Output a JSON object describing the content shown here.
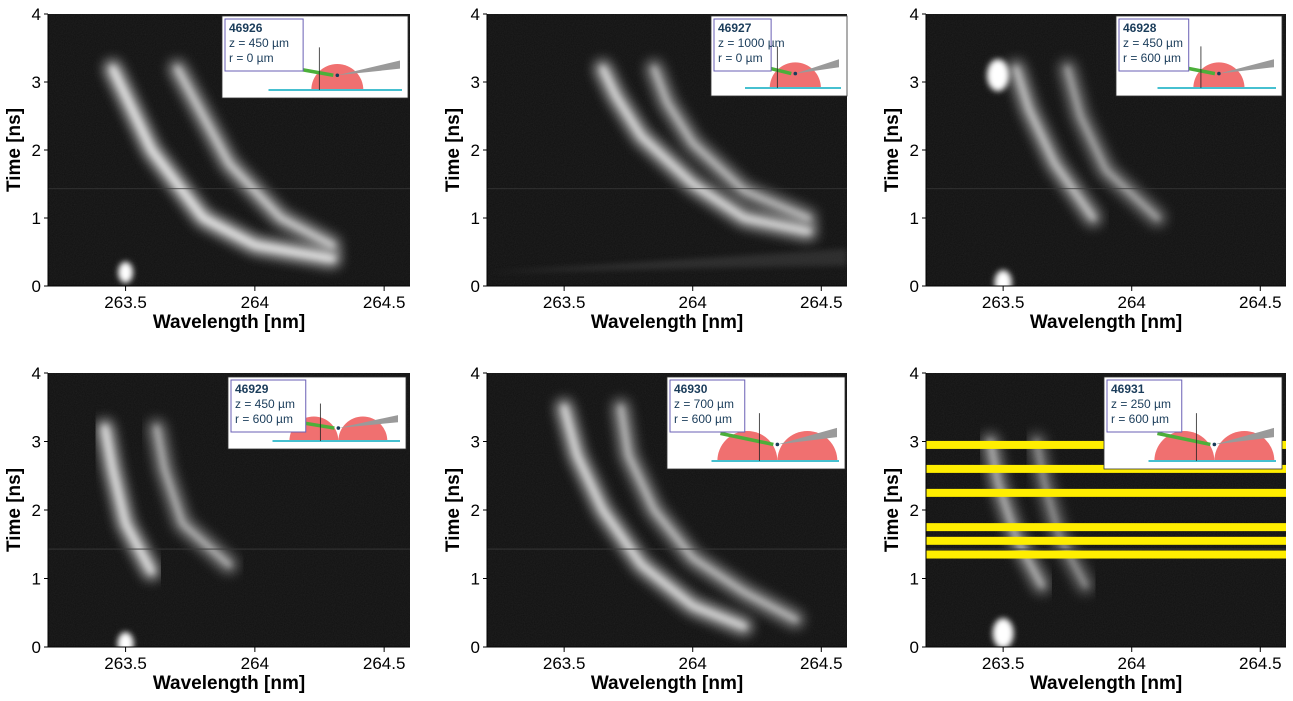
{
  "chart_data": [
    {
      "type": "heatmap",
      "shot": "46926",
      "inset": {
        "shot": "46926",
        "z": "z = 450 µm",
        "r": "r = 0 µm",
        "droplets": 1
      },
      "xlabel": "Wavelength [nm]",
      "ylabel": "Time [ns]",
      "xlim": [
        263.2,
        264.6
      ],
      "ylim": [
        0,
        4
      ],
      "xticks": [
        263.5,
        264,
        264.5
      ],
      "xtick_labels": [
        "263.5",
        "264",
        "264.5"
      ],
      "yticks": [
        0,
        1,
        2,
        3,
        4
      ],
      "ytick_labels": [
        "0",
        "1",
        "2",
        "3",
        "4"
      ],
      "bands": [
        {
          "x": [
            263.45,
            263.5,
            263.6,
            263.8,
            264.0,
            264.3
          ],
          "y": [
            3.2,
            2.8,
            2.0,
            1.0,
            0.6,
            0.4
          ],
          "intensity": 0.95
        },
        {
          "x": [
            263.7,
            263.8,
            263.9,
            264.1,
            264.3
          ],
          "y": [
            3.2,
            2.5,
            1.8,
            1.0,
            0.6
          ],
          "intensity": 0.75
        }
      ],
      "spots": [
        {
          "x": 263.5,
          "y": 0.2,
          "size": 0.4
        }
      ],
      "highlight_lines": []
    },
    {
      "type": "heatmap",
      "shot": "46927",
      "inset": {
        "shot": "46927",
        "z": "z = 1000 µm",
        "r": "r = 0 µm",
        "droplets": 1
      },
      "xlabel": "Wavelength [nm]",
      "ylabel": "Time [ns]",
      "xlim": [
        263.2,
        264.6
      ],
      "ylim": [
        0,
        4
      ],
      "xticks": [
        263.5,
        264,
        264.5
      ],
      "xtick_labels": [
        "263.5",
        "264",
        "264.5"
      ],
      "yticks": [
        0,
        1,
        2,
        3,
        4
      ],
      "ytick_labels": [
        "0",
        "1",
        "2",
        "3",
        "4"
      ],
      "bands": [
        {
          "x": [
            263.65,
            263.7,
            263.8,
            264.0,
            264.2,
            264.45
          ],
          "y": [
            3.2,
            2.8,
            2.2,
            1.5,
            1.0,
            0.8
          ],
          "intensity": 0.85
        },
        {
          "x": [
            263.85,
            263.9,
            264.0,
            264.2,
            264.45
          ],
          "y": [
            3.2,
            2.7,
            2.1,
            1.4,
            1.0
          ],
          "intensity": 0.65
        }
      ],
      "spots": [],
      "stripe": {
        "y_start": 0.2,
        "y_end": 0.45,
        "intensity": 0.35
      },
      "highlight_lines": []
    },
    {
      "type": "heatmap",
      "shot": "46928",
      "inset": {
        "shot": "46928",
        "z": "z = 450 µm",
        "r": "r = 600 µm",
        "droplets": 1
      },
      "xlabel": "Wavelength [nm]",
      "ylabel": "Time [ns]",
      "xlim": [
        263.2,
        264.6
      ],
      "ylim": [
        0,
        4
      ],
      "xticks": [
        263.5,
        264,
        264.5
      ],
      "xtick_labels": [
        "263.5",
        "264",
        "264.5"
      ],
      "yticks": [
        0,
        1,
        2,
        3,
        4
      ],
      "ytick_labels": [
        "0",
        "1",
        "2",
        "3",
        "4"
      ],
      "bands": [
        {
          "x": [
            263.55,
            263.6,
            263.7,
            263.85
          ],
          "y": [
            3.2,
            2.6,
            1.8,
            1.0
          ],
          "intensity": 0.7
        },
        {
          "x": [
            263.75,
            263.8,
            263.9,
            264.1
          ],
          "y": [
            3.2,
            2.5,
            1.7,
            1.0
          ],
          "intensity": 0.55
        }
      ],
      "spots": [
        {
          "x": 263.48,
          "y": 3.1,
          "size": 1.0
        },
        {
          "x": 263.5,
          "y": 0.05,
          "size": 0.6
        }
      ],
      "highlight_lines": []
    },
    {
      "type": "heatmap",
      "shot": "46929",
      "inset": {
        "shot": "46929",
        "z": "z = 450 µm",
        "r": "r = 600 µm",
        "droplets": 2
      },
      "xlabel": "Wavelength [nm]",
      "ylabel": "Time [ns]",
      "xlim": [
        263.2,
        264.6
      ],
      "ylim": [
        0,
        4
      ],
      "xticks": [
        263.5,
        264,
        264.5
      ],
      "xtick_labels": [
        "263.5",
        "264",
        "264.5"
      ],
      "yticks": [
        0,
        1,
        2,
        3,
        4
      ],
      "ytick_labels": [
        "0",
        "1",
        "2",
        "3",
        "4"
      ],
      "bands": [
        {
          "x": [
            263.42,
            263.45,
            263.5,
            263.6
          ],
          "y": [
            3.2,
            2.6,
            1.8,
            1.1
          ],
          "intensity": 0.9
        },
        {
          "x": [
            263.62,
            263.65,
            263.72,
            263.9
          ],
          "y": [
            3.2,
            2.6,
            1.8,
            1.2
          ],
          "intensity": 0.6
        }
      ],
      "spots": [
        {
          "x": 263.5,
          "y": 0.05,
          "size": 0.5
        }
      ],
      "highlight_lines": []
    },
    {
      "type": "heatmap",
      "shot": "46930",
      "inset": {
        "shot": "46930",
        "z": "z = 700 µm",
        "r": "r = 600 µm",
        "droplets": 2
      },
      "xlabel": "Wavelength [nm]",
      "ylabel": "Time [ns]",
      "xlim": [
        263.2,
        264.6
      ],
      "ylim": [
        0,
        4
      ],
      "xticks": [
        263.5,
        264,
        264.5
      ],
      "xtick_labels": [
        "263.5",
        "264",
        "264.5"
      ],
      "yticks": [
        0,
        1,
        2,
        3,
        4
      ],
      "ytick_labels": [
        "0",
        "1",
        "2",
        "3",
        "4"
      ],
      "bands": [
        {
          "x": [
            263.5,
            263.55,
            263.65,
            263.8,
            264.0,
            264.2
          ],
          "y": [
            3.5,
            2.8,
            2.0,
            1.2,
            0.6,
            0.3
          ],
          "intensity": 0.85
        },
        {
          "x": [
            263.72,
            263.75,
            263.85,
            264.0,
            264.2,
            264.4
          ],
          "y": [
            3.5,
            2.8,
            2.0,
            1.3,
            0.8,
            0.4
          ],
          "intensity": 0.65
        }
      ],
      "spots": [],
      "highlight_lines": []
    },
    {
      "type": "heatmap",
      "shot": "46931",
      "inset": {
        "shot": "46931",
        "z": "z = 250 µm",
        "r": "r = 600 µm",
        "droplets": 2
      },
      "xlabel": "Wavelength [nm]",
      "ylabel": "Time [ns]",
      "xlim": [
        263.2,
        264.6
      ],
      "ylim": [
        0,
        4
      ],
      "xticks": [
        263.5,
        264,
        264.5
      ],
      "xtick_labels": [
        "263.5",
        "264",
        "264.5"
      ],
      "yticks": [
        0,
        1,
        2,
        3,
        4
      ],
      "ytick_labels": [
        "0",
        "1",
        "2",
        "3",
        "4"
      ],
      "bands": [
        {
          "x": [
            263.45,
            263.48,
            263.55,
            263.65
          ],
          "y": [
            3.0,
            2.4,
            1.6,
            0.9
          ],
          "intensity": 0.6
        },
        {
          "x": [
            263.63,
            263.66,
            263.72,
            263.82
          ],
          "y": [
            3.0,
            2.4,
            1.6,
            0.9
          ],
          "intensity": 0.45
        }
      ],
      "spots": [
        {
          "x": 263.5,
          "y": 0.2,
          "size": 0.9
        }
      ],
      "highlight_lines": [
        2.95,
        2.6,
        2.25,
        1.75,
        1.55,
        1.35
      ],
      "highlight_color": "#ffee00"
    }
  ],
  "colors": {
    "background": "#ffffff",
    "plot_background": "#101010",
    "band": "#d8d8d8",
    "inset_border": "#6a5fb5",
    "inset_text": "#1a3c5a",
    "droplet": "#f07070",
    "laser_green": "#4caf3a",
    "probe_grey": "#9a9a9a",
    "substrate": "#46c0d0",
    "highlight": "#ffee00"
  }
}
